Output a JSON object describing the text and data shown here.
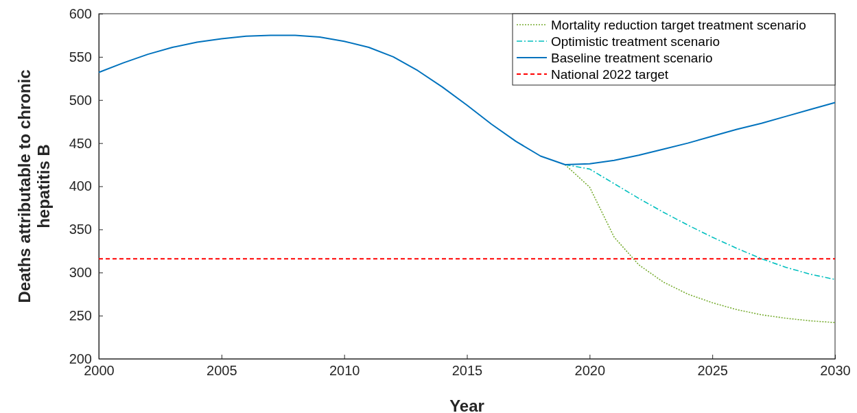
{
  "chart_data": {
    "type": "line",
    "xlabel": "Year",
    "ylabel": "Deaths attributable to chronic hepatitis B",
    "xlim": [
      2000,
      2030
    ],
    "xticks": [
      2000,
      2005,
      2010,
      2015,
      2020,
      2025,
      2030
    ],
    "ylim": [
      200,
      600
    ],
    "yticks": [
      200,
      250,
      300,
      350,
      400,
      450,
      500,
      550,
      600
    ],
    "grid": false,
    "legend": "top right",
    "series": [
      {
        "name": "Mortality reduction target treatment scenario",
        "color": "#77ac30",
        "line_style": "dotted",
        "x": [
          2019,
          2020,
          2021,
          2022,
          2023,
          2024,
          2025,
          2026,
          2027,
          2028,
          2029,
          2030
        ],
        "values": [
          425,
          399,
          341,
          309,
          289,
          275,
          265,
          257,
          251,
          247,
          244,
          242
        ]
      },
      {
        "name": "Optimistic treatment scenario",
        "color": "#00bfbf",
        "line_style": "dashed",
        "x": [
          2019,
          2020,
          2021,
          2022,
          2023,
          2024,
          2025,
          2026,
          2027,
          2028,
          2029,
          2030
        ],
        "values": [
          425,
          420,
          403,
          386,
          370,
          355,
          341,
          328,
          316,
          306,
          298,
          292
        ]
      },
      {
        "name": "Baseline treatment scenario",
        "color": "#0072bd",
        "line_style": "solid",
        "x": [
          2000,
          2001,
          2002,
          2003,
          2004,
          2005,
          2006,
          2007,
          2008,
          2009,
          2010,
          2011,
          2012,
          2013,
          2014,
          2015,
          2016,
          2017,
          2018,
          2019,
          2020,
          2021,
          2022,
          2023,
          2024,
          2025,
          2026,
          2027,
          2028,
          2029,
          2030
        ],
        "values": [
          532,
          543,
          553,
          561,
          567,
          571,
          574,
          575,
          575,
          573,
          568,
          561,
          550,
          534,
          515,
          494,
          472,
          452,
          435,
          425,
          426,
          430,
          436,
          443,
          450,
          458,
          466,
          473,
          481,
          489,
          497
        ]
      }
    ],
    "ref_lines": [
      {
        "axis": "y",
        "value": 316,
        "label": "National 2022 target",
        "color": "#ff0000",
        "line_style": "dashed"
      }
    ]
  }
}
